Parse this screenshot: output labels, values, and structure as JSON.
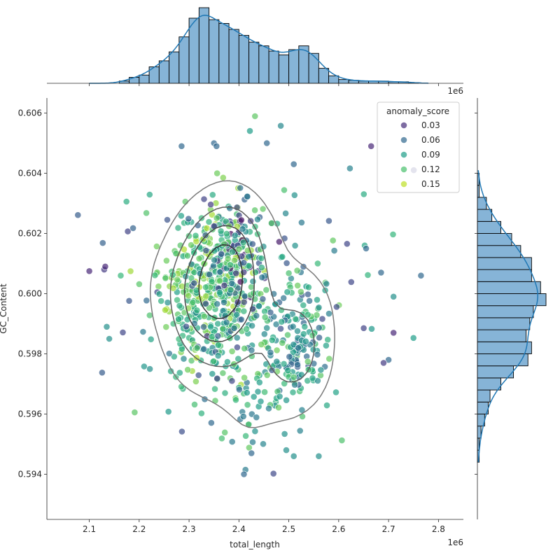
{
  "chart_data": {
    "type": "scatter",
    "subtype": "jointplot",
    "xlabel": "total_length",
    "ylabel": "GC_Content",
    "x_offset_label": "1e6",
    "x_ticks": [
      "2.1",
      "2.2",
      "2.3",
      "2.4",
      "2.5",
      "2.6",
      "2.7",
      "2.8"
    ],
    "y_ticks": [
      "0.594",
      "0.596",
      "0.598",
      "0.600",
      "0.602",
      "0.604",
      "0.606"
    ],
    "xlim": [
      2.015,
      2.85
    ],
    "ylim": [
      0.5925,
      0.6065
    ],
    "grid": false,
    "legend": {
      "title": "anomaly_score",
      "placement": "top-right",
      "entries": [
        {
          "label": "0.03",
          "color": "#472d7b"
        },
        {
          "label": "0.06",
          "color": "#31688e"
        },
        {
          "label": "0.09",
          "color": "#1f9e89"
        },
        {
          "label": "0.12",
          "color": "#4ac16d"
        },
        {
          "label": "0.15",
          "color": "#bddf26"
        }
      ]
    },
    "hue_range": [
      0.0,
      0.18
    ],
    "colormap": "viridis",
    "marker_opacity": 0.7,
    "kde_color": "#1f77b4",
    "hist_fill": "#86b4d7",
    "contour_color": "#7a7a7a",
    "contour_levels": 4,
    "point_clusters": [
      {
        "cx": 2.34,
        "cy": 0.6002,
        "sx": 0.045,
        "sy": 0.0013,
        "n": 330,
        "hue": [
          0.1,
          0.16
        ]
      },
      {
        "cx": 2.39,
        "cy": 0.6013,
        "sx": 0.03,
        "sy": 0.001,
        "n": 150,
        "hue": [
          0.0,
          0.16
        ]
      },
      {
        "cx": 2.52,
        "cy": 0.5986,
        "sx": 0.035,
        "sy": 0.0012,
        "n": 130,
        "hue": [
          0.05,
          0.14
        ]
      },
      {
        "cx": 2.42,
        "cy": 0.5972,
        "sx": 0.07,
        "sy": 0.0013,
        "n": 130,
        "hue": [
          0.06,
          0.14
        ]
      },
      {
        "cx": 2.4,
        "cy": 0.6,
        "sx": 0.12,
        "sy": 0.0022,
        "n": 150,
        "hue": [
          0.03,
          0.14
        ]
      }
    ],
    "fixed_points": [
      {
        "x": 2.1,
        "y": 0.60075,
        "hue": 0.02
      },
      {
        "x": 2.13,
        "y": 0.6008,
        "hue": 0.03
      },
      {
        "x": 2.132,
        "y": 0.6009,
        "hue": 0.02
      },
      {
        "x": 2.135,
        "y": 0.5989,
        "hue": 0.09
      },
      {
        "x": 2.14,
        "y": 0.5985,
        "hue": 0.09
      },
      {
        "x": 2.163,
        "y": 0.6006,
        "hue": 0.12
      },
      {
        "x": 2.665,
        "y": 0.6049,
        "hue": 0.02
      },
      {
        "x": 2.765,
        "y": 0.6006,
        "hue": 0.06
      },
      {
        "x": 2.71,
        "y": 0.5987,
        "hue": 0.02
      },
      {
        "x": 2.7,
        "y": 0.5978,
        "hue": 0.06
      },
      {
        "x": 2.69,
        "y": 0.5977,
        "hue": 0.03
      },
      {
        "x": 2.71,
        "y": 0.5999,
        "hue": 0.09
      },
      {
        "x": 2.655,
        "y": 0.6015,
        "hue": 0.06
      },
      {
        "x": 2.685,
        "y": 0.6007,
        "hue": 0.06
      },
      {
        "x": 2.41,
        "y": 0.594,
        "hue": 0.06
      },
      {
        "x": 2.425,
        "y": 0.5947,
        "hue": 0.06
      },
      {
        "x": 2.285,
        "y": 0.6049,
        "hue": 0.06
      },
      {
        "x": 2.35,
        "y": 0.605,
        "hue": 0.06
      },
      {
        "x": 2.355,
        "y": 0.6049,
        "hue": 0.06
      },
      {
        "x": 2.456,
        "y": 0.605,
        "hue": 0.06
      },
      {
        "x": 2.51,
        "y": 0.6043,
        "hue": 0.06
      },
      {
        "x": 2.56,
        "y": 0.5946,
        "hue": 0.09
      },
      {
        "x": 2.51,
        "y": 0.5946,
        "hue": 0.09
      },
      {
        "x": 2.495,
        "y": 0.5948,
        "hue": 0.09
      }
    ],
    "x_hist": {
      "bin_start": 2.16,
      "bin_width": 0.02,
      "counts": [
        3,
        8,
        11,
        22,
        30,
        42,
        62,
        87,
        101,
        85,
        80,
        72,
        64,
        55,
        50,
        43,
        38,
        45,
        50,
        40,
        20,
        10,
        5,
        4,
        3,
        3,
        3,
        2,
        2,
        1
      ]
    },
    "y_hist": {
      "bin_start": 0.5944,
      "bin_width": 0.0004,
      "counts": [
        1,
        1,
        2,
        4,
        6,
        7,
        13,
        20,
        28,
        30,
        27,
        29,
        31,
        38,
        35,
        30,
        30,
        24,
        19,
        13,
        8,
        5,
        1,
        1
      ]
    }
  }
}
